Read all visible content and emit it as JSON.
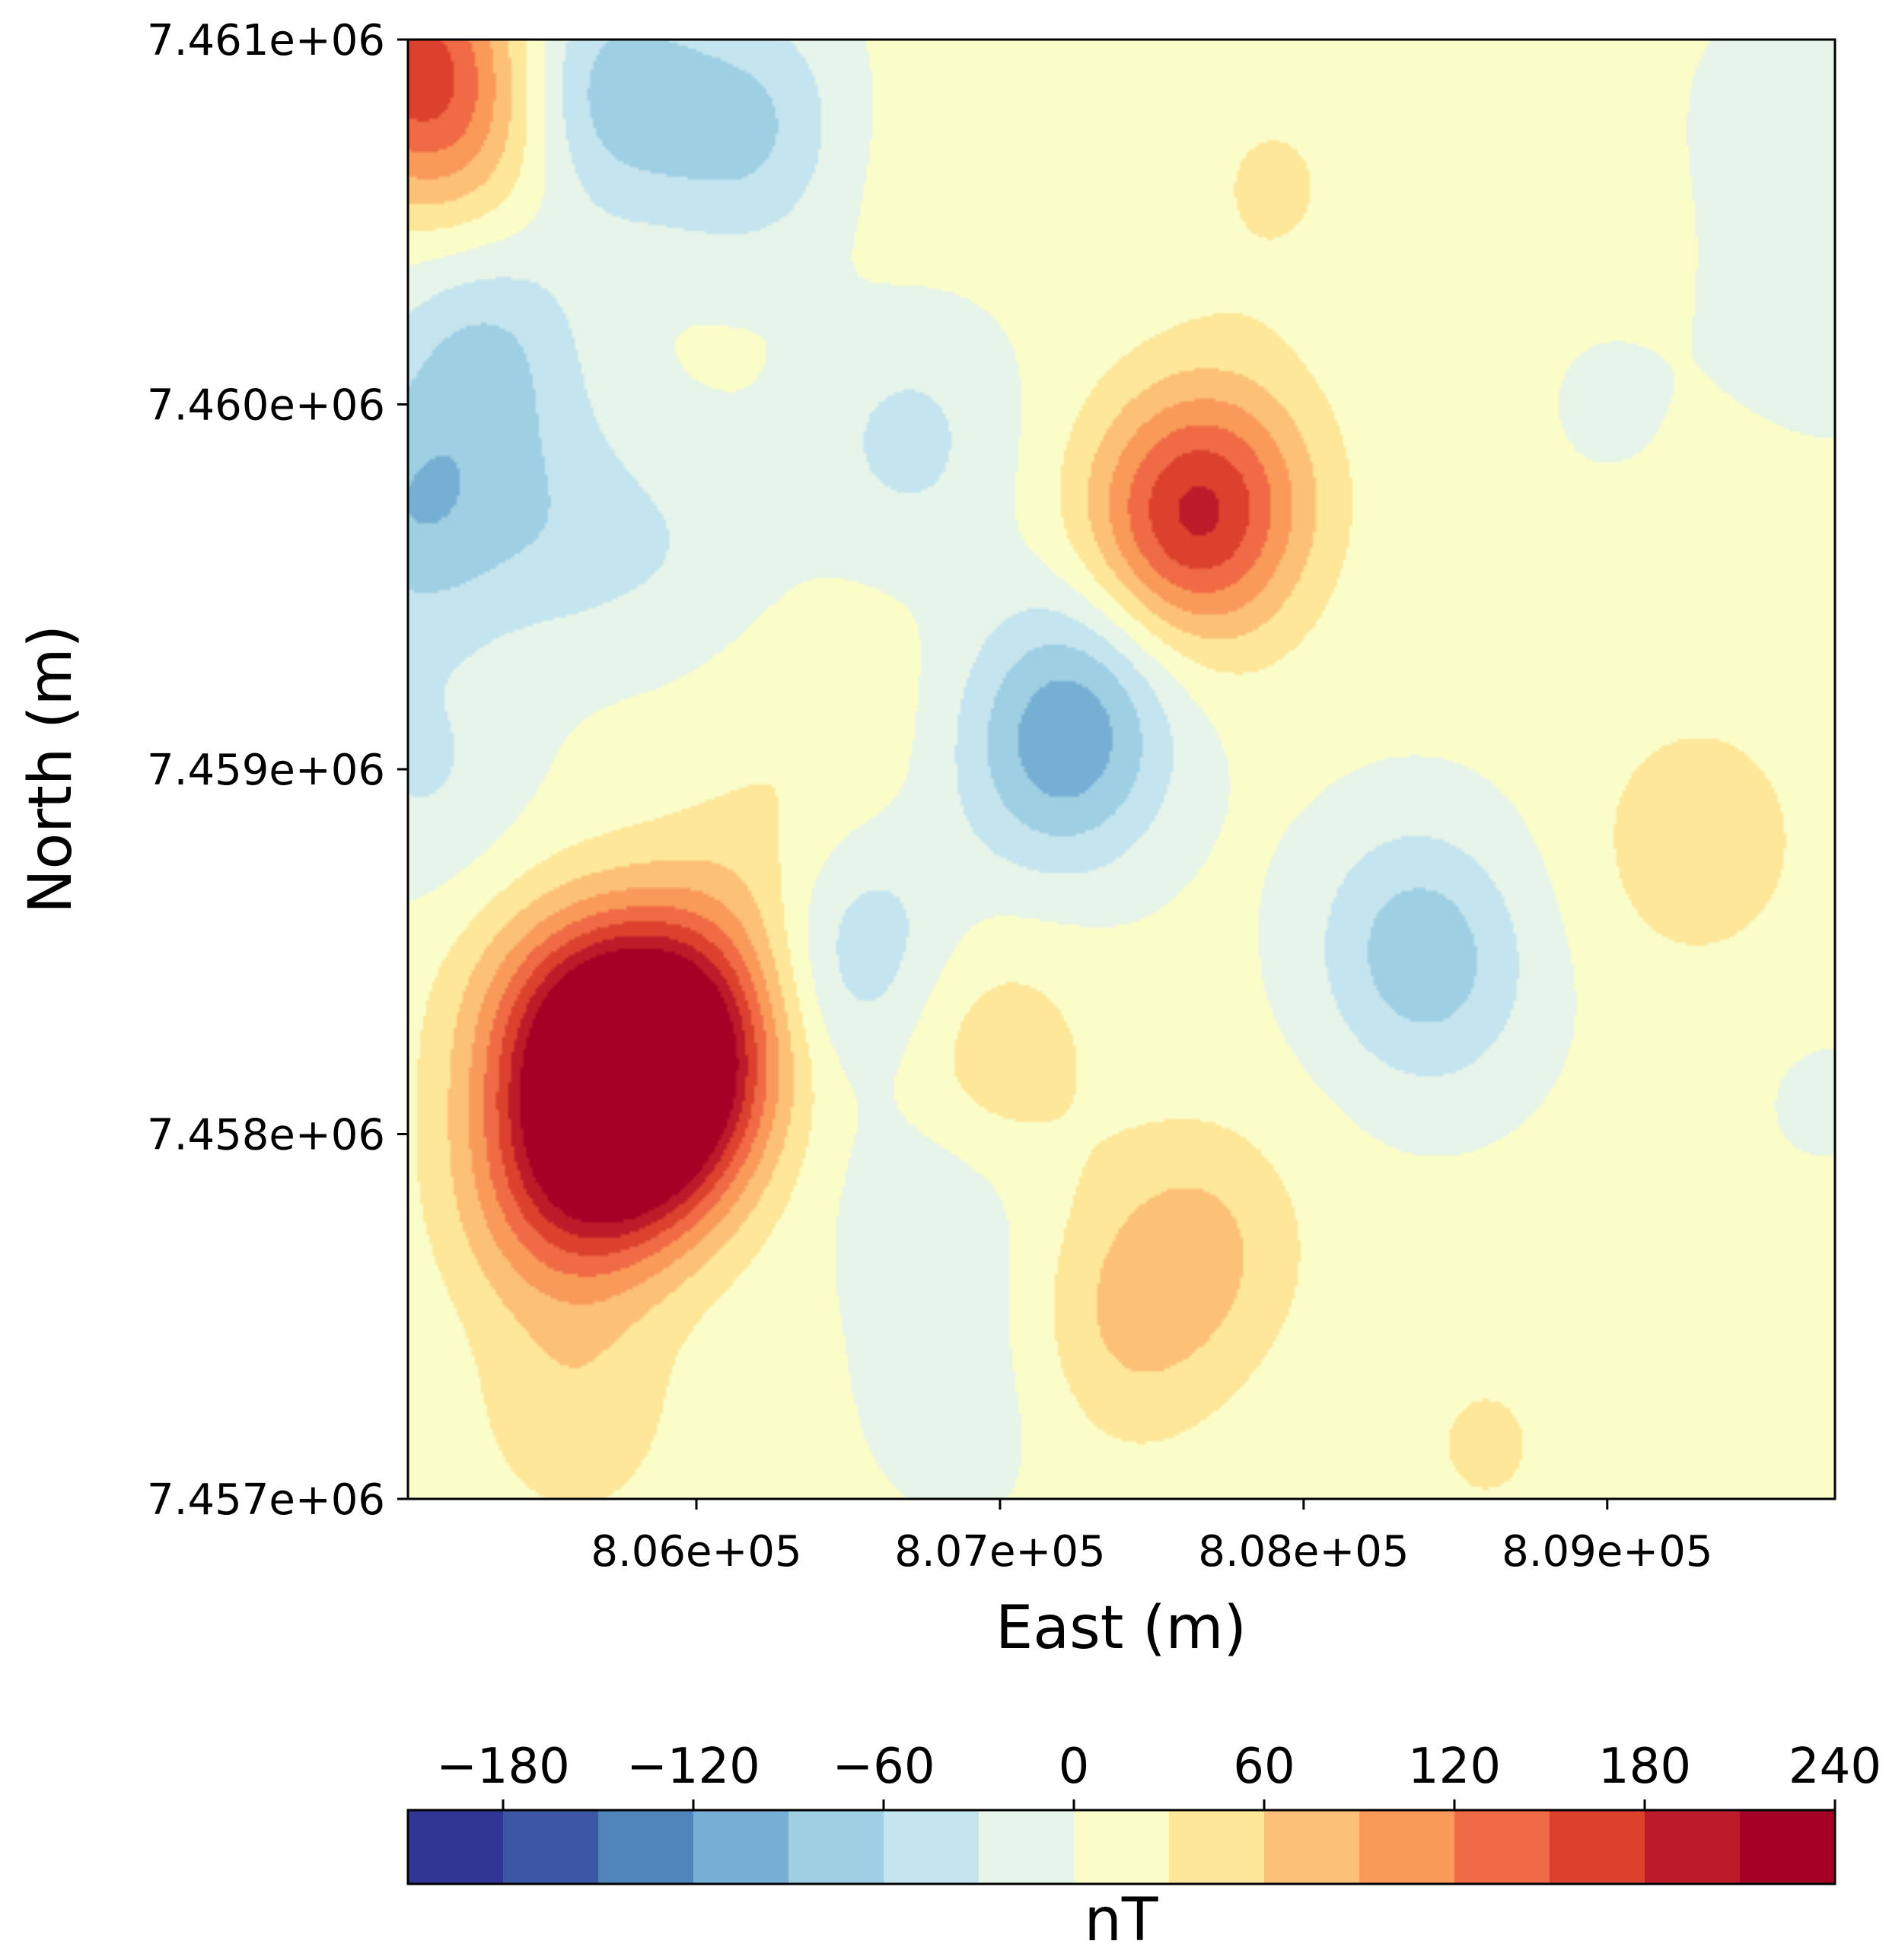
{
  "chart_data": {
    "type": "heatmap",
    "subtype": "filled-contour",
    "title": "",
    "xlabel": "East (m)",
    "ylabel": "North (m)",
    "xlim": [
      805050,
      809750
    ],
    "ylim": [
      7457000,
      7461000
    ],
    "x_ticks": [
      806000,
      807000,
      808000,
      809000
    ],
    "x_tick_labels": [
      "8.06e+05",
      "8.07e+05",
      "8.08e+05",
      "8.09e+05"
    ],
    "y_ticks": [
      7457000,
      7458000,
      7459000,
      7460000,
      7461000
    ],
    "y_tick_labels": [
      "7.457e+06",
      "7.458e+06",
      "7.459e+06",
      "7.460e+06",
      "7.461e+06"
    ],
    "colorbar": {
      "label": "nT",
      "orientation": "horizontal",
      "location": "bottom",
      "levels": [
        -210,
        -180,
        -150,
        -120,
        -90,
        -60,
        -30,
        0,
        30,
        60,
        90,
        120,
        150,
        180,
        210,
        240
      ],
      "ticks": [
        -180,
        -120,
        -60,
        0,
        60,
        120,
        180,
        240
      ],
      "tick_labels": [
        "−180",
        "−120",
        "−60",
        "0",
        "60",
        "120",
        "180",
        "240"
      ],
      "colors": [
        "#313695",
        "#3b57a4",
        "#5085bc",
        "#75afd3",
        "#9ecfe3",
        "#c4e5ef",
        "#e6f4ea",
        "#fbfdc9",
        "#fee799",
        "#fdc077",
        "#f99a59",
        "#f06b45",
        "#dc412e",
        "#bd1b29",
        "#a50026"
      ],
      "cmap": "RdYlBu_r"
    },
    "grid": false,
    "anomalies": [
      {
        "x": 805800,
        "y": 7458050,
        "value": 215
      },
      {
        "x": 805950,
        "y": 7458250,
        "value": 150
      },
      {
        "x": 805550,
        "y": 7458300,
        "value": 90
      },
      {
        "x": 805550,
        "y": 7457850,
        "value": 110
      },
      {
        "x": 807700,
        "y": 7459750,
        "value": 120
      },
      {
        "x": 807550,
        "y": 7459600,
        "value": 85
      },
      {
        "x": 805050,
        "y": 7460950,
        "value": 130
      },
      {
        "x": 805250,
        "y": 7460750,
        "value": 60
      },
      {
        "x": 805750,
        "y": 7458300,
        "value": 80
      },
      {
        "x": 806200,
        "y": 7458600,
        "value": 45
      },
      {
        "x": 806950,
        "y": 7458200,
        "value": 50
      },
      {
        "x": 807650,
        "y": 7457700,
        "value": 55
      },
      {
        "x": 807400,
        "y": 7457450,
        "value": 45
      },
      {
        "x": 809300,
        "y": 7458800,
        "value": 45
      },
      {
        "x": 805600,
        "y": 7457250,
        "value": 40
      },
      {
        "x": 806400,
        "y": 7459100,
        "value": 20
      },
      {
        "x": 807900,
        "y": 7460600,
        "value": 25
      },
      {
        "x": 808600,
        "y": 7457150,
        "value": 25
      },
      {
        "x": 809550,
        "y": 7457100,
        "value": 20
      },
      {
        "x": 806500,
        "y": 7460700,
        "value": 15
      },
      {
        "x": 805700,
        "y": 7460850,
        "value": -85
      },
      {
        "x": 806200,
        "y": 7460750,
        "value": -75
      },
      {
        "x": 805300,
        "y": 7460150,
        "value": -70
      },
      {
        "x": 805050,
        "y": 7459700,
        "value": -85
      },
      {
        "x": 805550,
        "y": 7459650,
        "value": -45
      },
      {
        "x": 806500,
        "y": 7458500,
        "value": -75
      },
      {
        "x": 807200,
        "y": 7459050,
        "value": -105
      },
      {
        "x": 806700,
        "y": 7459900,
        "value": -45
      },
      {
        "x": 807350,
        "y": 7459350,
        "value": -45
      },
      {
        "x": 808350,
        "y": 7458550,
        "value": -55
      },
      {
        "x": 806800,
        "y": 7457850,
        "value": -35
      },
      {
        "x": 806000,
        "y": 7459600,
        "value": -25
      },
      {
        "x": 808450,
        "y": 7458400,
        "value": -40
      },
      {
        "x": 809600,
        "y": 7460800,
        "value": -20
      },
      {
        "x": 809750,
        "y": 7460300,
        "value": -30
      },
      {
        "x": 805100,
        "y": 7459000,
        "value": -40
      },
      {
        "x": 806900,
        "y": 7457300,
        "value": -25
      },
      {
        "x": 809000,
        "y": 7460000,
        "value": -10
      },
      {
        "x": 809700,
        "y": 7458100,
        "value": -10
      }
    ]
  }
}
